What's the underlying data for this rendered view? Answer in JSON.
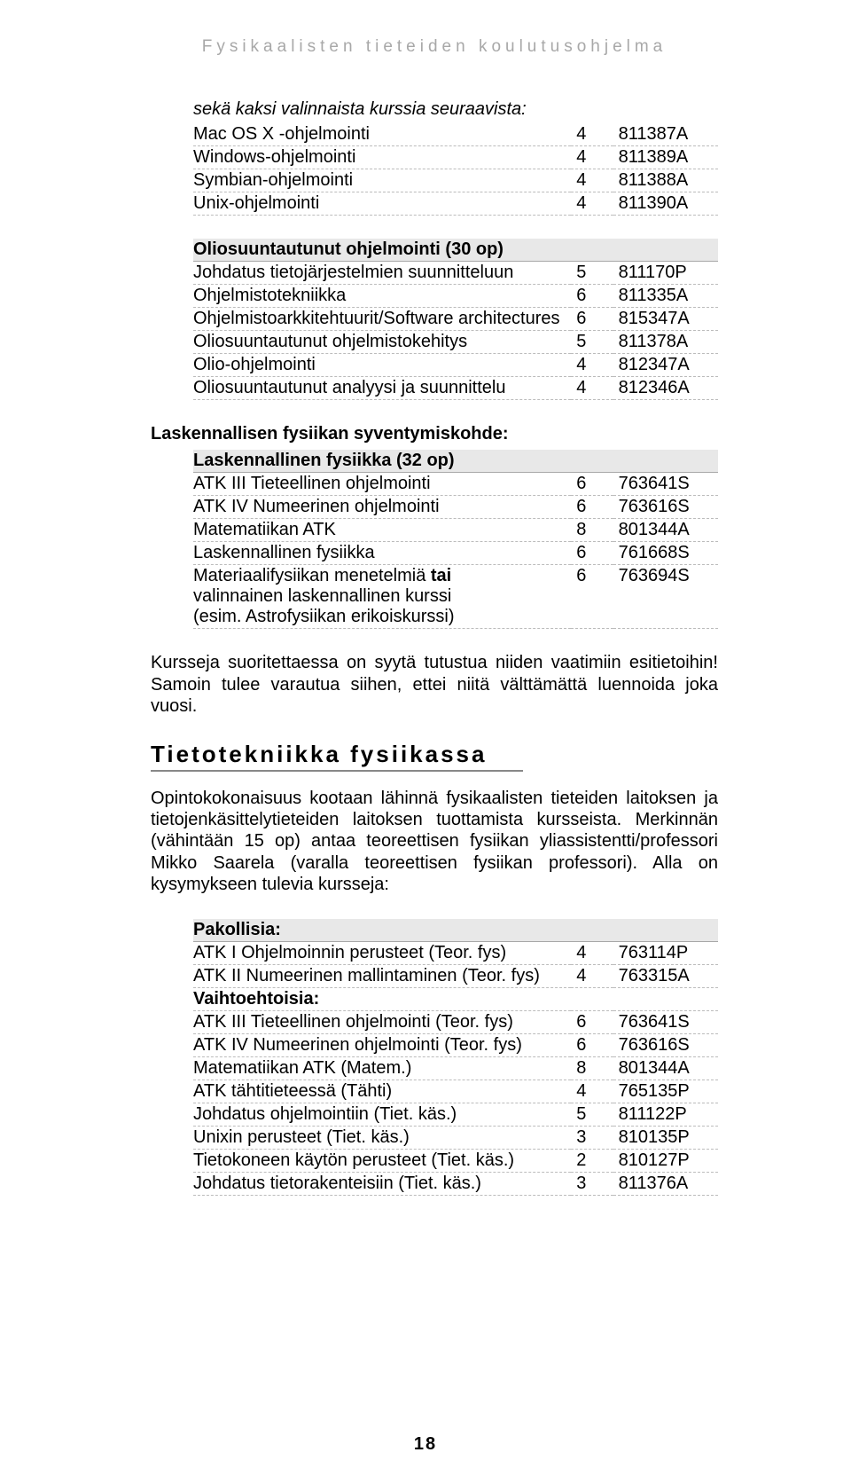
{
  "header": "Fysikaalisten tieteiden koulutusohjelma",
  "intro": "sekä kaksi valinnaista kurssia seuraavista:",
  "table1": {
    "rows": [
      [
        "Mac OS X -ohjelmointi",
        "4",
        "811387A"
      ],
      [
        "Windows-ohjelmointi",
        "4",
        "811389A"
      ],
      [
        "Symbian-ohjelmointi",
        "4",
        "811388A"
      ],
      [
        "Unix-ohjelmointi",
        "4",
        "811390A"
      ]
    ]
  },
  "table2": {
    "title": "Oliosuuntautunut ohjelmointi (30 op)",
    "rows": [
      [
        "Johdatus tietojärjestelmien suunnitteluun",
        "5",
        "811170P"
      ],
      [
        "Ohjelmistotekniikka",
        "6",
        "811335A"
      ],
      [
        "Ohjelmistoarkkitehtuurit/Software architectures",
        "6",
        "815347A"
      ],
      [
        "Oliosuuntautunut ohjelmistokehitys",
        "5",
        "811378A"
      ],
      [
        "Olio-ohjelmointi",
        "4",
        "812347A"
      ],
      [
        "Oliosuuntautunut analyysi ja suunnittelu",
        "4",
        "812346A"
      ]
    ]
  },
  "lask_heading": "Laskennallisen fysiikan syventymiskohde:",
  "table3": {
    "title": "Laskennallinen fysiikka (32 op)",
    "rows": [
      [
        "ATK III Tieteellinen ohjelmointi",
        "6",
        "763641S"
      ],
      [
        "ATK IV Numeerinen ohjelmointi",
        "6",
        "763616S"
      ],
      [
        "Matematiikan ATK",
        "8",
        "801344A"
      ],
      [
        "Laskennallinen fysiikka",
        "6",
        "761668S"
      ]
    ],
    "lastrow": {
      "l1a": "Materiaalifysiikan menetelmiä ",
      "l1b": "tai",
      "l2": "valinnainen laskennallinen kurssi",
      "l3": "(esim. Astrofysiikan erikoiskurssi)",
      "n": "6",
      "c": "763694S"
    }
  },
  "para1": "Kursseja suoritettaessa on syytä tutustua niiden vaatimiin esitietoihin! Samoin tulee varautua siihen, ettei niitä välttämättä luennoida joka vuosi.",
  "h2": "Tietotekniikka fysiikassa",
  "para2": "Opintokokonaisuus kootaan lähinnä fysikaalisten tieteiden laitoksen ja tietojen­käsittelytieteiden laitoksen tuottamista kursseista. Merkinnän (vähintään 15 op) antaa teoreettisen fysiikan yliassistentti/professori Mikko Saarela (varalla teoreetti­sen fysiikan professori). Alla on kysymykseen tulevia kursseja:",
  "table4": {
    "title1": "Pakollisia:",
    "rows1": [
      [
        "ATK I Ohjelmoinnin perusteet  (Teor. fys)",
        "4",
        "763114P"
      ],
      [
        "ATK II Numeerinen mallintaminen  (Teor. fys)",
        "4",
        "763315A"
      ]
    ],
    "title2": "Vaihtoehtoisia:",
    "rows2": [
      [
        "ATK III Tieteellinen ohjelmointi  (Teor. fys)",
        "6",
        "763641S"
      ],
      [
        "ATK IV Numeerinen ohjelmointi  (Teor. fys)",
        "6",
        "763616S"
      ],
      [
        "Matematiikan ATK  (Matem.)",
        "8",
        "801344A"
      ],
      [
        "ATK tähtitieteessä  (Tähti)",
        "4",
        "765135P"
      ],
      [
        "Johdatus ohjelmointiin  (Tiet. käs.)",
        "5",
        "811122P"
      ],
      [
        "Unixin perusteet  (Tiet. käs.)",
        "3",
        "810135P"
      ],
      [
        "Tietokoneen käytön perusteet  (Tiet. käs.)",
        "2",
        "810127P"
      ],
      [
        "Johdatus tietorakenteisiin  (Tiet. käs.)",
        "3",
        "811376A"
      ]
    ]
  },
  "pagenum": "18"
}
